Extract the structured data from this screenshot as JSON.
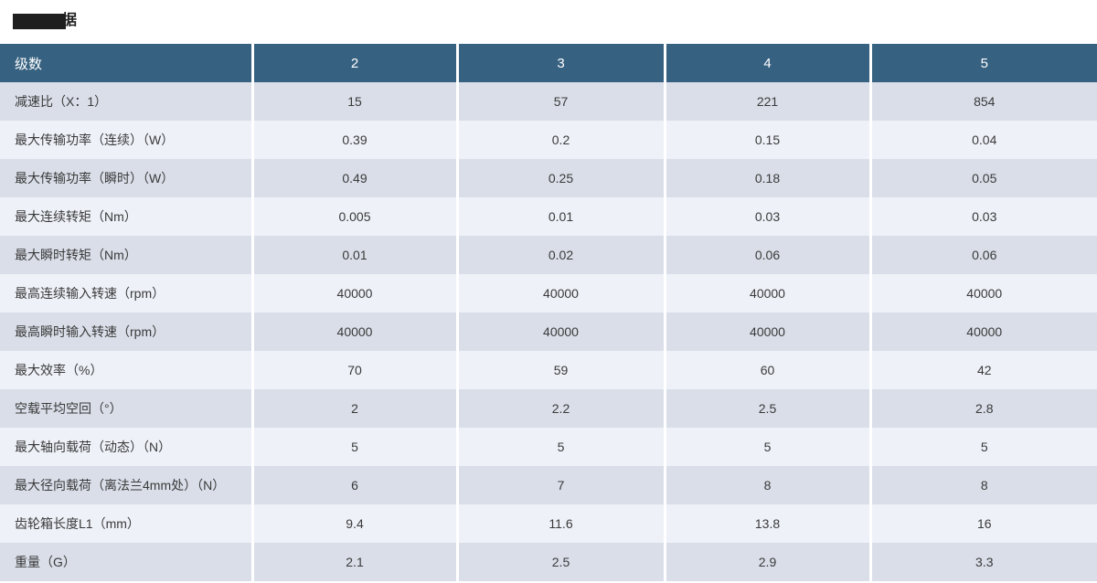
{
  "title": {
    "visible_suffix": "据",
    "redacted": true
  },
  "colors": {
    "header_bg": "#366180",
    "header_text": "#ffffff",
    "row_dark": "#d9dee8",
    "row_light": "#eef1f8",
    "body_text": "#3a3a3a",
    "separator": "#ffffff"
  },
  "table": {
    "header": {
      "label": "级数",
      "cols": [
        "2",
        "3",
        "4",
        "5"
      ]
    },
    "rows": [
      {
        "label": "减速比（X：1）",
        "values": [
          "15",
          "57",
          "221",
          "854"
        ]
      },
      {
        "label": "最大传输功率（连续）（W）",
        "values": [
          "0.39",
          "0.2",
          "0.15",
          "0.04"
        ]
      },
      {
        "label": "最大传输功率（瞬时）（W）",
        "values": [
          "0.49",
          "0.25",
          "0.18",
          "0.05"
        ]
      },
      {
        "label": "最大连续转矩（Nm）",
        "values": [
          "0.005",
          "0.01",
          "0.03",
          "0.03"
        ]
      },
      {
        "label": "最大瞬时转矩（Nm）",
        "values": [
          "0.01",
          "0.02",
          "0.06",
          "0.06"
        ]
      },
      {
        "label": "最高连续输入转速（rpm）",
        "values": [
          "40000",
          "40000",
          "40000",
          "40000"
        ]
      },
      {
        "label": "最高瞬时输入转速（rpm）",
        "values": [
          "40000",
          "40000",
          "40000",
          "40000"
        ]
      },
      {
        "label": "最大效率（%）",
        "values": [
          "70",
          "59",
          "60",
          "42"
        ]
      },
      {
        "label": "空载平均空回（°）",
        "values": [
          "2",
          "2.2",
          "2.5",
          "2.8"
        ]
      },
      {
        "label": "最大轴向载荷（动态）（N）",
        "values": [
          "5",
          "5",
          "5",
          "5"
        ]
      },
      {
        "label": "最大径向载荷（离法兰4mm处）（N）",
        "values": [
          "6",
          "7",
          "8",
          "8"
        ]
      },
      {
        "label": "齿轮箱长度L1（mm）",
        "values": [
          "9.4",
          "11.6",
          "13.8",
          "16"
        ]
      },
      {
        "label": "重量（G）",
        "values": [
          "2.1",
          "2.5",
          "2.9",
          "3.3"
        ]
      }
    ]
  }
}
